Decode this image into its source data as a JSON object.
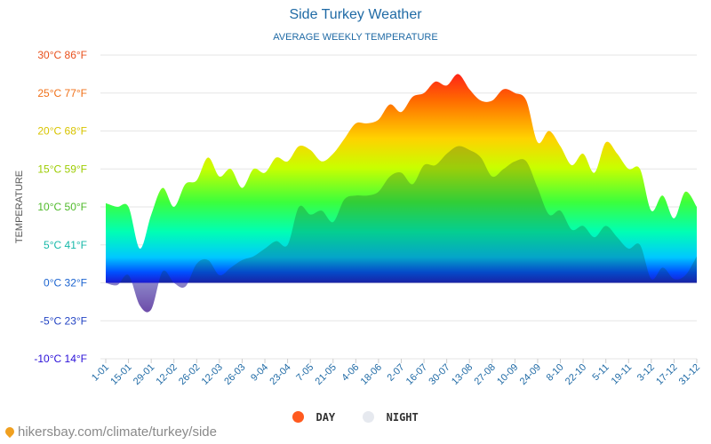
{
  "header": {
    "title": "Side Turkey Weather",
    "subtitle": "AVERAGE WEEKLY TEMPERATURE"
  },
  "footer": {
    "text": "hikersbay.com/climate/turkey/side"
  },
  "colors": {
    "title": "#1f6aa5",
    "axis_text": "#1f6aa5",
    "day_marker": "#ff5a1f",
    "night_marker": "#e6e9ef",
    "night_area": "rgba(20,60,40,0.25)"
  },
  "chart_data": {
    "type": "area",
    "title": "Side Turkey Weather",
    "subtitle": "AVERAGE WEEKLY TEMPERATURE",
    "ylabel": "TEMPERATURE",
    "ylim": [
      -10,
      30
    ],
    "y_ticks": [
      {
        "value": 30,
        "label": "30°C 86°F",
        "color": "#e8501c"
      },
      {
        "value": 25,
        "label": "25°C 77°F",
        "color": "#f07018"
      },
      {
        "value": 20,
        "label": "20°C 68°F",
        "color": "#d8c400"
      },
      {
        "value": 15,
        "label": "15°C 59°F",
        "color": "#9ccc00"
      },
      {
        "value": 10,
        "label": "10°C 50°F",
        "color": "#4fba2a"
      },
      {
        "value": 5,
        "label": "5°C 41°F",
        "color": "#16b8a8"
      },
      {
        "value": 0,
        "label": "0°C 32°F",
        "color": "#1c64d0"
      },
      {
        "value": -5,
        "label": "-5°C 23°F",
        "color": "#2445c4"
      },
      {
        "value": -10,
        "label": "-10°C 14°F",
        "color": "#2a10d8"
      }
    ],
    "x_labels": [
      "1-01",
      "15-01",
      "29-01",
      "12-02",
      "26-02",
      "12-03",
      "26-03",
      "9-04",
      "23-04",
      "7-05",
      "21-05",
      "4-06",
      "18-06",
      "2-07",
      "16-07",
      "30-07",
      "13-08",
      "27-08",
      "10-09",
      "24-09",
      "8-10",
      "22-10",
      "5-11",
      "19-11",
      "3-12",
      "17-12",
      "31-12"
    ],
    "grid": true,
    "legend_position": "bottom",
    "series": [
      {
        "name": "DAY",
        "values": [
          10.5,
          10,
          10,
          4.5,
          9,
          12.5,
          10,
          13,
          13.5,
          16.5,
          14,
          15,
          12.5,
          15,
          14.5,
          16.5,
          16,
          18,
          17.5,
          16,
          17,
          19,
          21,
          21,
          21.5,
          23.5,
          22.5,
          24.5,
          25,
          26.5,
          26,
          27.5,
          25.5,
          24,
          24,
          25.5,
          25,
          24,
          18.5,
          20,
          18,
          15.5,
          17,
          14.5,
          18.5,
          17,
          15,
          15,
          9.5,
          11.5,
          8.5,
          12,
          10
        ]
      },
      {
        "name": "NIGHT",
        "values": [
          0,
          -0.3,
          1,
          -3,
          -3.5,
          1.5,
          0,
          -0.5,
          2.5,
          3,
          1,
          2,
          3,
          3.5,
          4.5,
          5.5,
          5,
          10,
          9,
          9.5,
          8,
          11,
          11.5,
          11.5,
          12,
          14,
          14.5,
          13,
          15.5,
          15.5,
          17,
          18,
          17.5,
          16.5,
          14,
          15,
          16,
          16,
          12.5,
          9,
          9.5,
          7,
          7.5,
          6,
          7.5,
          6,
          4.5,
          5,
          0.5,
          2,
          0.5,
          1,
          3.5
        ]
      }
    ]
  }
}
